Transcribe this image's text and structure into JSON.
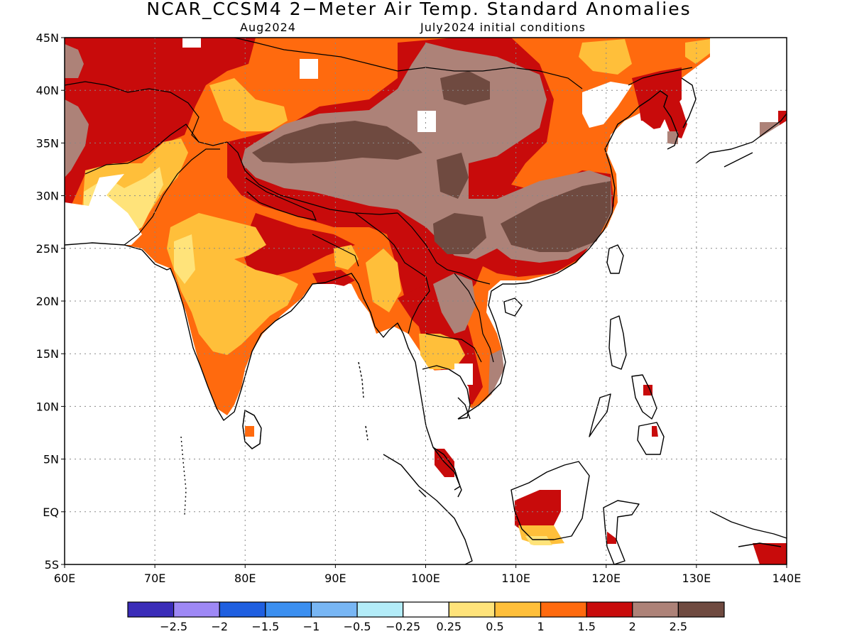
{
  "title": "NCAR_CCSM4 2−Meter Air Temp. Standard Anomalies",
  "subtitle_left": "Aug2024",
  "subtitle_right": "July2024 initial conditions",
  "map": {
    "lon_range": [
      60,
      140
    ],
    "lat_range": [
      -5,
      45
    ],
    "lat_ticks": [
      "45N",
      "40N",
      "35N",
      "30N",
      "25N",
      "20N",
      "15N",
      "10N",
      "5N",
      "EQ",
      "5S"
    ],
    "lat_values": [
      45,
      40,
      35,
      30,
      25,
      20,
      15,
      10,
      5,
      0,
      -5
    ],
    "lon_ticks": [
      "60E",
      "70E",
      "80E",
      "90E",
      "100E",
      "110E",
      "120E",
      "130E",
      "140E"
    ],
    "lon_values": [
      60,
      70,
      80,
      90,
      100,
      110,
      120,
      130,
      140
    ],
    "grid": "dotted"
  },
  "colorbar": {
    "colors": [
      "#3a2cb8",
      "#9e88f5",
      "#1f5fe0",
      "#3b8ff0",
      "#78b6f4",
      "#b3ecf8",
      "#ffffff",
      "#ffe37a",
      "#ffbf3a",
      "#ff6a0e",
      "#c80b0b",
      "#ad8278",
      "#6f4a40"
    ],
    "labels": [
      "−2.5",
      "−2",
      "−1.5",
      "−1",
      "−0.5",
      "−0.25",
      "0.25",
      "0.5",
      "1",
      "1.5",
      "2",
      "2.5"
    ]
  },
  "legend_colors": {
    "ocean": "#ffffff",
    "coast": "#000000",
    "lvl_05": "#ffe37a",
    "lvl_1": "#ffbf3a",
    "lvl_15": "#ff6a0e",
    "lvl_2": "#c80b0b",
    "lvl_25": "#ad8278",
    "lvl_3": "#6f4a40"
  }
}
